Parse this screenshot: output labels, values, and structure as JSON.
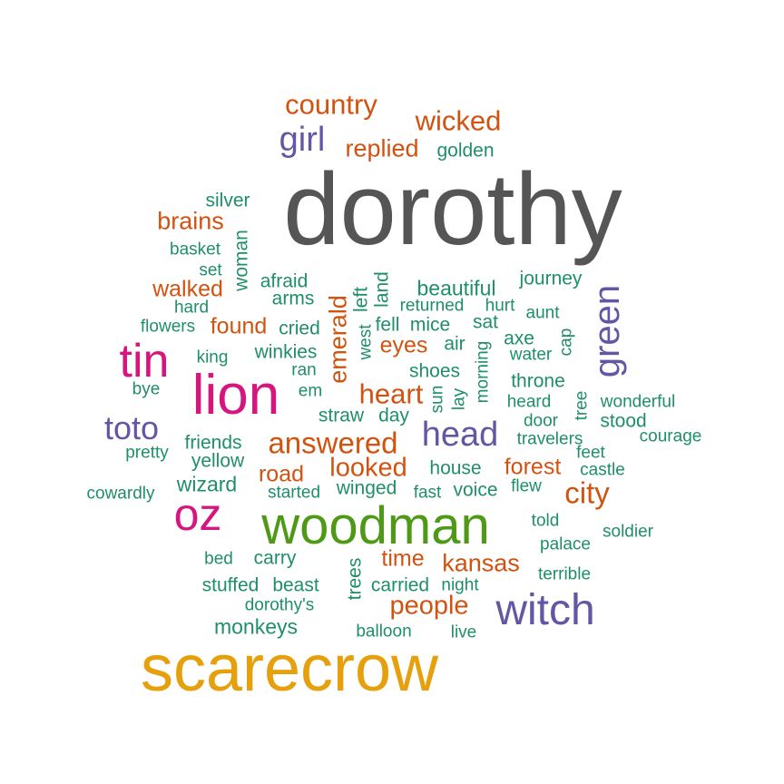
{
  "words": [
    {
      "text": "dorothy",
      "color": "#555555"
    },
    {
      "text": "scarecrow",
      "color": "#e6a00c"
    },
    {
      "text": "woodman",
      "color": "#4e9a16"
    },
    {
      "text": "lion",
      "color": "#d6167e"
    },
    {
      "text": "oz",
      "color": "#d6167e"
    },
    {
      "text": "tin",
      "color": "#d6167e"
    },
    {
      "text": "witch",
      "color": "#6555a5"
    },
    {
      "text": "green",
      "color": "#6555a5"
    },
    {
      "text": "head",
      "color": "#6555a5"
    },
    {
      "text": "toto",
      "color": "#6555a5"
    },
    {
      "text": "girl",
      "color": "#6555a5"
    },
    {
      "text": "country",
      "color": "#d2520f"
    },
    {
      "text": "wicked",
      "color": "#d2520f"
    },
    {
      "text": "replied",
      "color": "#d2520f"
    },
    {
      "text": "brains",
      "color": "#d2520f"
    },
    {
      "text": "walked",
      "color": "#d2520f"
    },
    {
      "text": "found",
      "color": "#d2520f"
    },
    {
      "text": "emerald",
      "color": "#d2520f"
    },
    {
      "text": "eyes",
      "color": "#d2520f"
    },
    {
      "text": "heart",
      "color": "#d2520f"
    },
    {
      "text": "answered",
      "color": "#d2520f"
    },
    {
      "text": "looked",
      "color": "#d2520f"
    },
    {
      "text": "road",
      "color": "#d2520f"
    },
    {
      "text": "forest",
      "color": "#d2520f"
    },
    {
      "text": "city",
      "color": "#d2520f"
    },
    {
      "text": "time",
      "color": "#d2520f"
    },
    {
      "text": "kansas",
      "color": "#d2520f"
    },
    {
      "text": "people",
      "color": "#d2520f"
    },
    {
      "text": "golden",
      "color": "#1f8e6b"
    },
    {
      "text": "silver",
      "color": "#1f8e6b"
    },
    {
      "text": "basket",
      "color": "#1f8e6b"
    },
    {
      "text": "woman",
      "color": "#1f8e6b"
    },
    {
      "text": "set",
      "color": "#1f8e6b"
    },
    {
      "text": "afraid",
      "color": "#1f8e6b"
    },
    {
      "text": "arms",
      "color": "#1f8e6b"
    },
    {
      "text": "left",
      "color": "#1f8e6b"
    },
    {
      "text": "land",
      "color": "#1f8e6b"
    },
    {
      "text": "beautiful",
      "color": "#1f8e6b"
    },
    {
      "text": "journey",
      "color": "#1f8e6b"
    },
    {
      "text": "hard",
      "color": "#1f8e6b"
    },
    {
      "text": "returned",
      "color": "#1f8e6b"
    },
    {
      "text": "hurt",
      "color": "#1f8e6b"
    },
    {
      "text": "aunt",
      "color": "#1f8e6b"
    },
    {
      "text": "flowers",
      "color": "#1f8e6b"
    },
    {
      "text": "cried",
      "color": "#1f8e6b"
    },
    {
      "text": "fell",
      "color": "#1f8e6b"
    },
    {
      "text": "mice",
      "color": "#1f8e6b"
    },
    {
      "text": "sat",
      "color": "#1f8e6b"
    },
    {
      "text": "west",
      "color": "#1f8e6b"
    },
    {
      "text": "axe",
      "color": "#1f8e6b"
    },
    {
      "text": "cap",
      "color": "#1f8e6b"
    },
    {
      "text": "king",
      "color": "#1f8e6b"
    },
    {
      "text": "winkies",
      "color": "#1f8e6b"
    },
    {
      "text": "air",
      "color": "#1f8e6b"
    },
    {
      "text": "water",
      "color": "#1f8e6b"
    },
    {
      "text": "ran",
      "color": "#1f8e6b"
    },
    {
      "text": "shoes",
      "color": "#1f8e6b"
    },
    {
      "text": "morning",
      "color": "#1f8e6b"
    },
    {
      "text": "throne",
      "color": "#1f8e6b"
    },
    {
      "text": "bye",
      "color": "#1f8e6b"
    },
    {
      "text": "em",
      "color": "#1f8e6b"
    },
    {
      "text": "sun",
      "color": "#1f8e6b"
    },
    {
      "text": "lay",
      "color": "#1f8e6b"
    },
    {
      "text": "heard",
      "color": "#1f8e6b"
    },
    {
      "text": "tree",
      "color": "#1f8e6b"
    },
    {
      "text": "wonderful",
      "color": "#1f8e6b"
    },
    {
      "text": "straw",
      "color": "#1f8e6b"
    },
    {
      "text": "day",
      "color": "#1f8e6b"
    },
    {
      "text": "door",
      "color": "#1f8e6b"
    },
    {
      "text": "stood",
      "color": "#1f8e6b"
    },
    {
      "text": "friends",
      "color": "#1f8e6b"
    },
    {
      "text": "travelers",
      "color": "#1f8e6b"
    },
    {
      "text": "courage",
      "color": "#1f8e6b"
    },
    {
      "text": "pretty",
      "color": "#1f8e6b"
    },
    {
      "text": "yellow",
      "color": "#1f8e6b"
    },
    {
      "text": "feet",
      "color": "#1f8e6b"
    },
    {
      "text": "house",
      "color": "#1f8e6b"
    },
    {
      "text": "castle",
      "color": "#1f8e6b"
    },
    {
      "text": "wizard",
      "color": "#1f8e6b"
    },
    {
      "text": "winged",
      "color": "#1f8e6b"
    },
    {
      "text": "voice",
      "color": "#1f8e6b"
    },
    {
      "text": "flew",
      "color": "#1f8e6b"
    },
    {
      "text": "cowardly",
      "color": "#1f8e6b"
    },
    {
      "text": "started",
      "color": "#1f8e6b"
    },
    {
      "text": "fast",
      "color": "#1f8e6b"
    },
    {
      "text": "told",
      "color": "#1f8e6b"
    },
    {
      "text": "soldier",
      "color": "#1f8e6b"
    },
    {
      "text": "palace",
      "color": "#1f8e6b"
    },
    {
      "text": "bed",
      "color": "#1f8e6b"
    },
    {
      "text": "carry",
      "color": "#1f8e6b"
    },
    {
      "text": "trees",
      "color": "#1f8e6b"
    },
    {
      "text": "stuffed",
      "color": "#1f8e6b"
    },
    {
      "text": "beast",
      "color": "#1f8e6b"
    },
    {
      "text": "carried",
      "color": "#1f8e6b"
    },
    {
      "text": "night",
      "color": "#1f8e6b"
    },
    {
      "text": "terrible",
      "color": "#1f8e6b"
    },
    {
      "text": "dorothy's",
      "color": "#1f8e6b"
    },
    {
      "text": "monkeys",
      "color": "#1f8e6b"
    },
    {
      "text": "balloon",
      "color": "#1f8e6b"
    },
    {
      "text": "live",
      "color": "#1f8e6b"
    }
  ]
}
